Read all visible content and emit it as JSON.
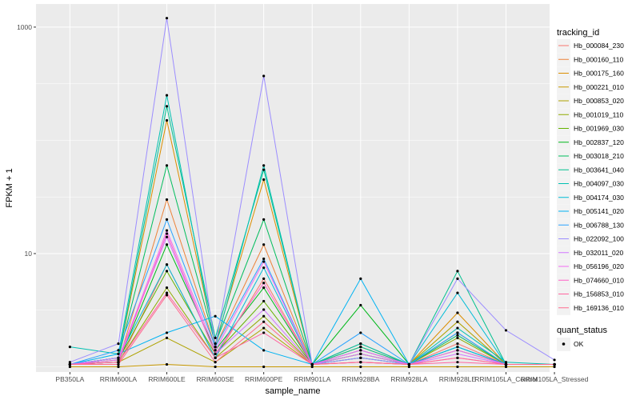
{
  "chart_data": {
    "type": "line",
    "xlabel": "sample_name",
    "ylabel": "FPKM + 1",
    "y_scale": "log10",
    "ylim": [
      0.9,
      1600
    ],
    "y_ticks": [
      10,
      1000
    ],
    "y_tick_labels": [
      "10",
      "1000"
    ],
    "grid": true,
    "panel_background": "#ebebeb",
    "legend_position": "right",
    "categories": [
      "PB350LA",
      "RRIM600LA",
      "RRIM600LE",
      "RRIM600SE",
      "RRIM600PE",
      "RRIM901LA",
      "RRIM928BA",
      "RRIM928LA",
      "RRIM928LE",
      "RRIM105LA_Control",
      "RRIM105LA_Stressed"
    ],
    "legend_title": "tracking_id",
    "series": [
      {
        "name": "Hb_000084_230",
        "color": "#F8766D",
        "values": [
          1.05,
          1.05,
          8.0,
          1.2,
          6.0,
          1.05,
          1.1,
          1.05,
          1.6,
          1.05,
          1.05
        ]
      },
      {
        "name": "Hb_000160_110",
        "color": "#EC8239",
        "values": [
          1.05,
          1.1,
          30.0,
          1.5,
          12.0,
          1.05,
          1.3,
          1.05,
          2.0,
          1.05,
          1.05
        ]
      },
      {
        "name": "Hb_000175_160",
        "color": "#DB8E00",
        "values": [
          1.05,
          1.2,
          150.0,
          1.6,
          45.0,
          1.05,
          1.5,
          1.05,
          3.0,
          1.05,
          1.05
        ]
      },
      {
        "name": "Hb_000221_010",
        "color": "#C79800",
        "values": [
          1.0,
          1.0,
          1.05,
          1.0,
          1.0,
          1.0,
          1.0,
          1.0,
          1.0,
          1.0,
          1.0
        ]
      },
      {
        "name": "Hb_000853_020",
        "color": "#AEA200",
        "values": [
          1.05,
          1.1,
          1.8,
          1.1,
          2.2,
          1.05,
          1.6,
          1.05,
          2.5,
          1.05,
          1.05
        ]
      },
      {
        "name": "Hb_001019_110",
        "color": "#8FAA00",
        "values": [
          1.05,
          1.1,
          5.0,
          1.2,
          2.8,
          1.05,
          1.2,
          1.05,
          1.8,
          1.05,
          1.05
        ]
      },
      {
        "name": "Hb_001969_030",
        "color": "#64B200",
        "values": [
          1.05,
          1.15,
          7.0,
          1.3,
          3.8,
          1.05,
          1.3,
          1.05,
          1.4,
          1.05,
          1.05
        ]
      },
      {
        "name": "Hb_002837_120",
        "color": "#00B81B",
        "values": [
          1.05,
          1.1,
          12.0,
          1.4,
          5.0,
          1.05,
          3.5,
          1.05,
          1.5,
          1.05,
          1.05
        ]
      },
      {
        "name": "Hb_003018_210",
        "color": "#00BD5C",
        "values": [
          1.05,
          1.2,
          60.0,
          1.6,
          20.0,
          1.05,
          1.4,
          1.05,
          1.9,
          1.05,
          1.05
        ]
      },
      {
        "name": "Hb_003641_040",
        "color": "#00C08E",
        "values": [
          1.05,
          1.2,
          200.0,
          1.8,
          55.0,
          1.05,
          1.5,
          1.05,
          7.0,
          1.05,
          1.05
        ]
      },
      {
        "name": "Hb_004097_030",
        "color": "#00C1B2",
        "values": [
          1.5,
          1.3,
          250.0,
          1.5,
          60.0,
          1.05,
          1.6,
          1.05,
          2.2,
          1.1,
          1.05
        ]
      },
      {
        "name": "Hb_004174_030",
        "color": "#00BCD6",
        "values": [
          1.05,
          1.2,
          8.0,
          1.2,
          7.5,
          1.05,
          1.2,
          1.05,
          4.5,
          1.05,
          1.05
        ]
      },
      {
        "name": "Hb_005141_020",
        "color": "#00B3F2",
        "values": [
          1.05,
          1.3,
          2.0,
          2.8,
          1.4,
          1.05,
          6.0,
          1.05,
          1.5,
          1.05,
          1.05
        ]
      },
      {
        "name": "Hb_006788_130",
        "color": "#29A3FF",
        "values": [
          1.05,
          1.4,
          20.0,
          1.5,
          9.0,
          1.05,
          2.0,
          1.05,
          2.0,
          1.05,
          1.05
        ]
      },
      {
        "name": "Hb_022092_100",
        "color": "#9C8DFF",
        "values": [
          1.1,
          1.6,
          1200.0,
          1.5,
          370.0,
          1.05,
          1.2,
          1.05,
          6.0,
          2.1,
          1.15
        ]
      },
      {
        "name": "Hb_032011_020",
        "color": "#D277FF",
        "values": [
          1.05,
          1.2,
          14.0,
          1.3,
          3.2,
          1.05,
          1.3,
          1.05,
          1.3,
          1.05,
          1.05
        ]
      },
      {
        "name": "Hb_056196_020",
        "color": "#F269F1",
        "values": [
          1.05,
          1.15,
          16.0,
          1.4,
          8.5,
          1.05,
          1.4,
          1.05,
          1.4,
          1.05,
          1.05
        ]
      },
      {
        "name": "Hb_074660_010",
        "color": "#FF61C7",
        "values": [
          1.05,
          1.1,
          15.0,
          1.3,
          5.5,
          1.05,
          1.1,
          1.05,
          1.2,
          1.05,
          1.05
        ]
      },
      {
        "name": "Hb_156853_010",
        "color": "#FF66A0",
        "values": [
          1.05,
          1.1,
          4.5,
          1.2,
          2.0,
          1.05,
          1.1,
          1.05,
          1.1,
          1.05,
          1.05
        ]
      },
      {
        "name": "Hb_169136_010",
        "color": "#FF6C90",
        "values": [
          1.05,
          1.05,
          4.3,
          1.1,
          2.5,
          1.05,
          1.1,
          1.05,
          1.2,
          1.05,
          1.05
        ]
      }
    ],
    "shape_legend": {
      "title": "quant_status",
      "items": [
        {
          "label": "OK",
          "shape": "point",
          "color": "#000000"
        }
      ]
    }
  }
}
